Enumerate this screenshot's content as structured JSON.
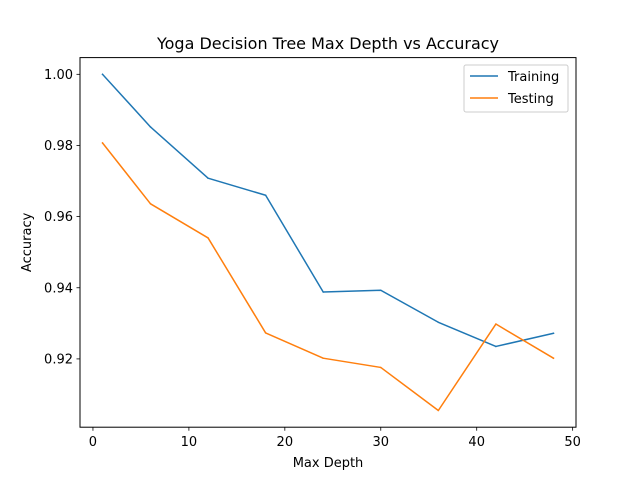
{
  "chart_data": {
    "type": "line",
    "title": "Yoga Decision Tree Max Depth vs Accuracy",
    "xlabel": "Max Depth",
    "ylabel": "Accuracy",
    "xlim": [
      -1.35,
      50.35
    ],
    "ylim": [
      0.9008,
      1.0047
    ],
    "x_ticks": [
      0,
      10,
      20,
      30,
      40,
      50
    ],
    "x_tick_labels": [
      "0",
      "10",
      "20",
      "30",
      "40",
      "50"
    ],
    "y_ticks": [
      0.92,
      0.94,
      0.96,
      0.98,
      1.0
    ],
    "y_tick_labels": [
      "0.92",
      "0.94",
      "0.96",
      "0.98",
      "1.00"
    ],
    "grid": false,
    "legend_position": "top-right",
    "x": [
      1,
      6,
      12,
      18,
      24,
      30,
      36,
      42,
      48
    ],
    "series": [
      {
        "name": "Training",
        "color": "#1f77b4",
        "values": [
          1.0,
          0.9852,
          0.9708,
          0.966,
          0.9388,
          0.9393,
          0.9303,
          0.9235,
          0.9272
        ]
      },
      {
        "name": "Testing",
        "color": "#ff7f0e",
        "values": [
          0.9807,
          0.9636,
          0.954,
          0.9273,
          0.9202,
          0.9176,
          0.9055,
          0.9298,
          0.9202
        ]
      }
    ]
  }
}
